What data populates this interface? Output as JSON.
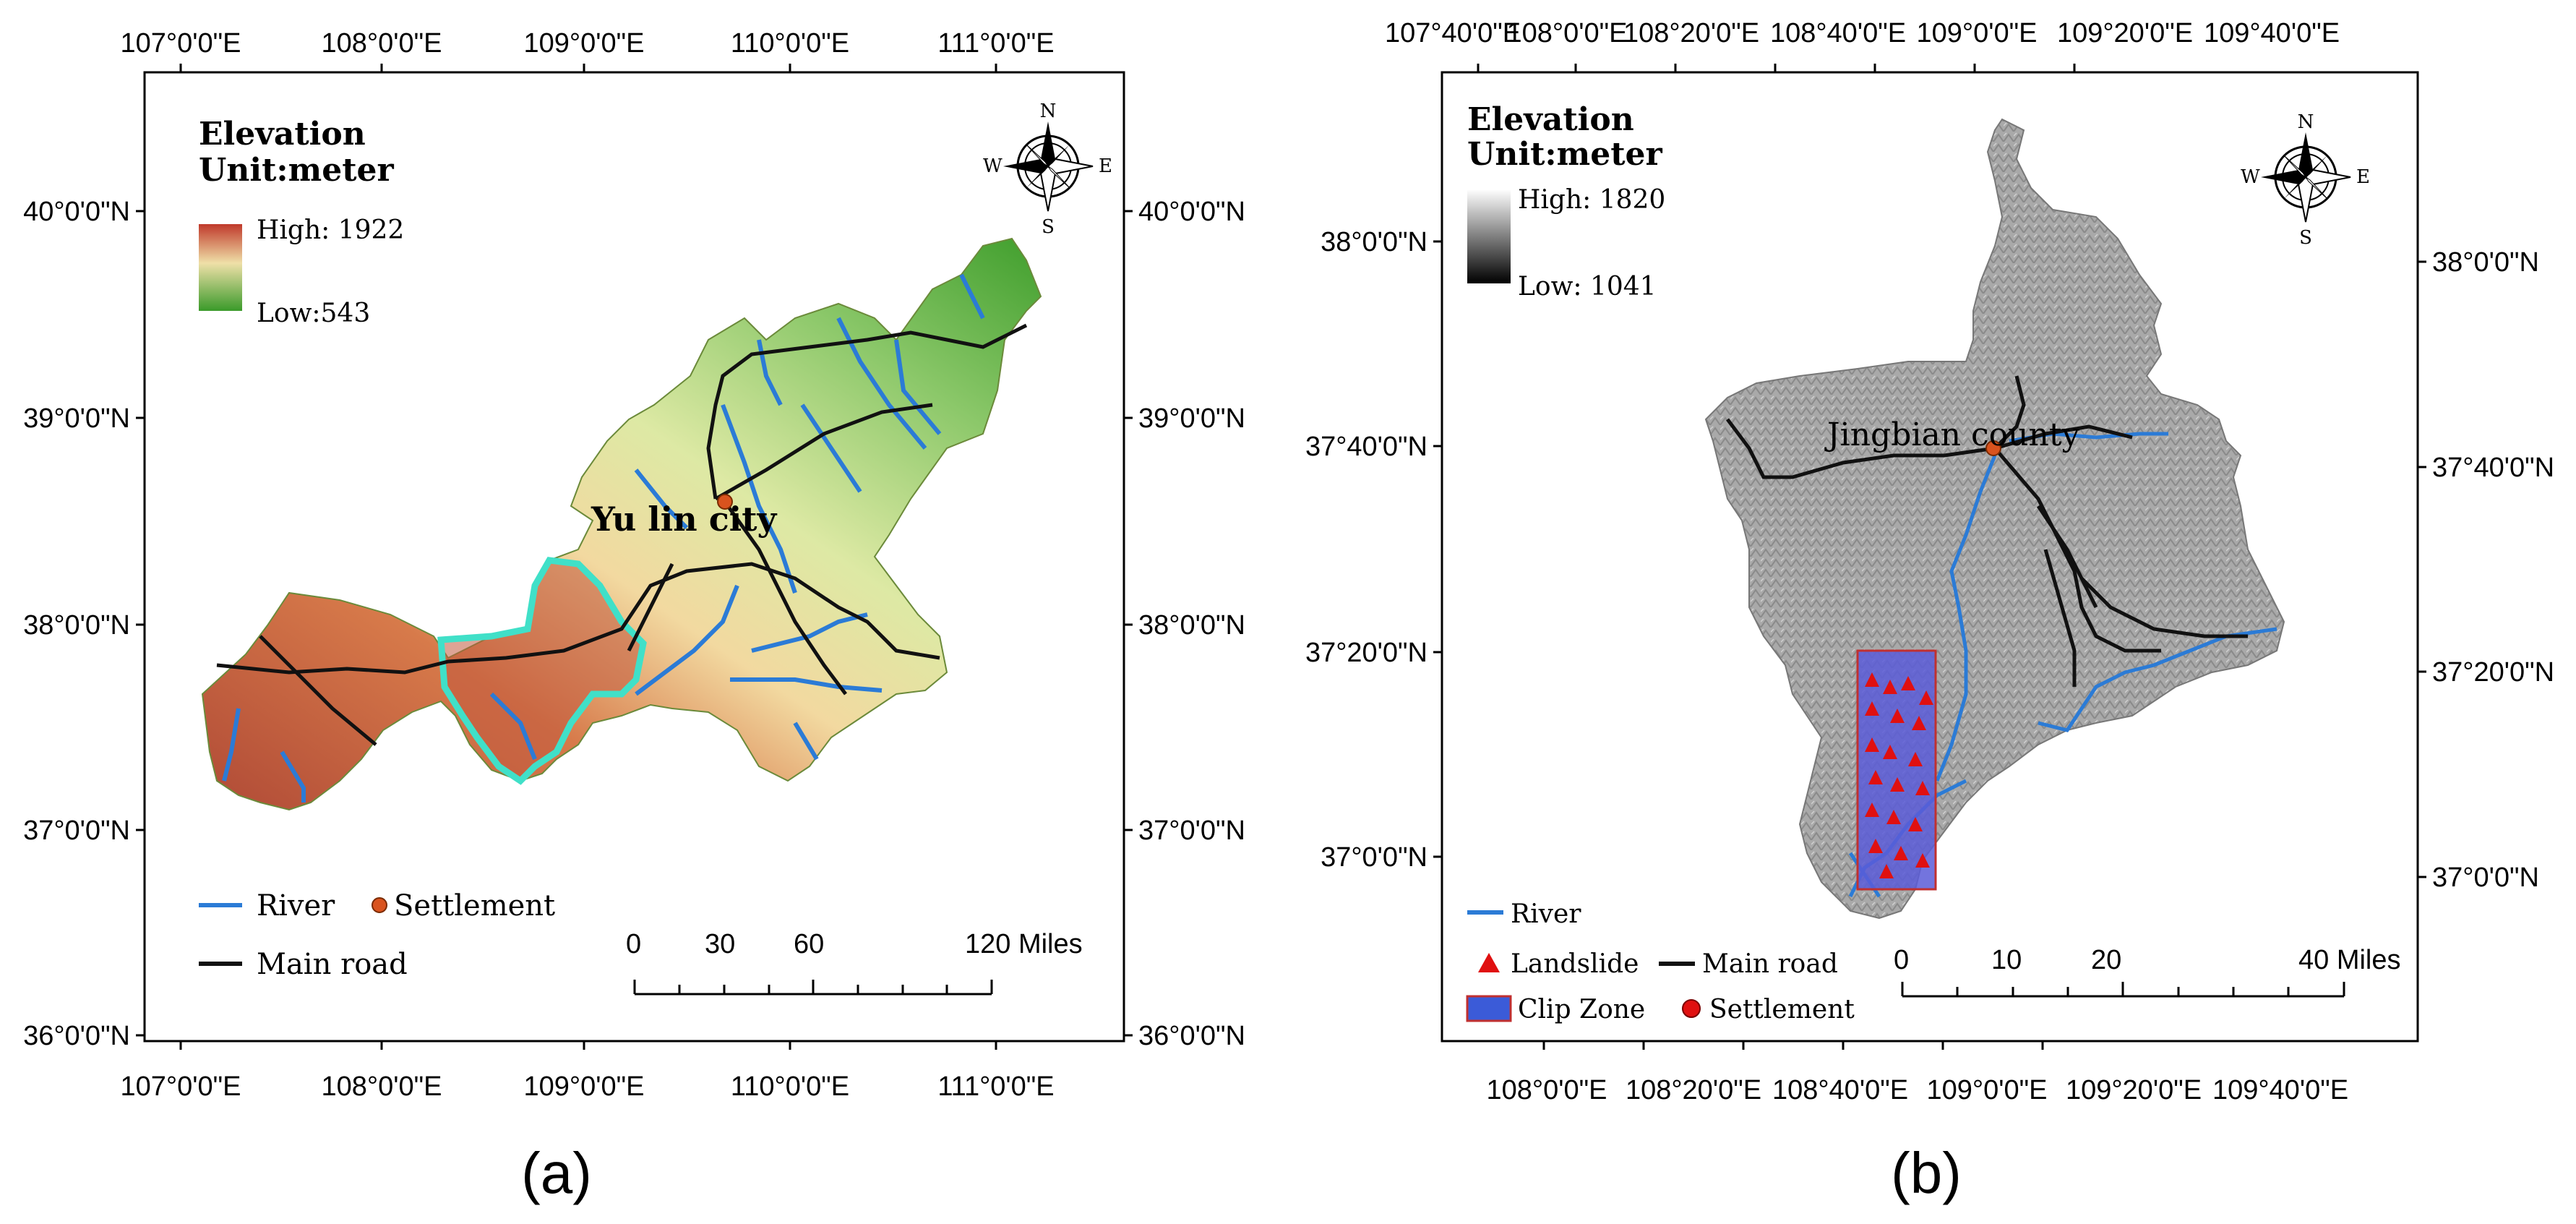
{
  "panels": [
    {
      "caption": "(a)",
      "top_ticks": [
        "107°0'0\"E",
        "108°0'0\"E",
        "109°0'0\"E",
        "110°0'0\"E",
        "111°0'0\"E"
      ],
      "bottom_ticks": [
        "107°0'0\"E",
        "108°0'0\"E",
        "109°0'0\"E",
        "110°0'0\"E",
        "111°0'0\"E"
      ],
      "left_ticks": [
        "40°0'0\"N",
        "39°0'0\"N",
        "38°0'0\"N",
        "37°0'0\"N",
        "36°0'0\"N"
      ],
      "right_ticks": [
        "40°0'0\"N",
        "39°0'0\"N",
        "38°0'0\"N",
        "37°0'0\"N",
        "36°0'0\"N"
      ],
      "legend": {
        "title1": "Elevation",
        "title2": "Unit:meter",
        "high": "High: 1922",
        "low": "Low:543",
        "high_color": "#c0392b",
        "low_color": "#3a9a2a"
      },
      "place_label": "Yu lin city",
      "bottom_legend": {
        "river": "River",
        "settlement": "Settlement",
        "road": "Main road"
      },
      "scale": {
        "ticks": [
          "0",
          "30",
          "60",
          "120 Miles"
        ]
      },
      "north": {
        "n": "N",
        "s": "S",
        "e": "E",
        "w": "W"
      }
    },
    {
      "caption": "(b)",
      "top_ticks": [
        "107°40'0\"E",
        "108°0'0\"E",
        "108°20'0\"E",
        "108°40'0\"E",
        "109°0'0\"E",
        "109°20'0\"E",
        "109°40'0\"E"
      ],
      "bottom_ticks": [
        "108°0'0\"E",
        "108°20'0\"E",
        "108°40'0\"E",
        "109°0'0\"E",
        "109°20'0\"E",
        "109°40'0\"E"
      ],
      "left_ticks": [
        "38°0'0\"N",
        "37°40'0\"N",
        "37°20'0\"N",
        "37°0'0\"N"
      ],
      "right_ticks": [
        "38°0'0\"N",
        "37°40'0\"N",
        "37°20'0\"N",
        "37°0'0\"N"
      ],
      "legend": {
        "title1": "Elevation",
        "title2": "Unit:meter",
        "high": "High: 1820",
        "low": "Low: 1041"
      },
      "place_label": "Jingbian county",
      "bottom_legend": {
        "river": "River",
        "landslide": "Landslide",
        "road": "Main road",
        "clip": "Clip Zone",
        "settlement": "Settlement"
      },
      "scale": {
        "ticks": [
          "0",
          "10",
          "20",
          "40 Miles"
        ]
      },
      "north": {
        "n": "N",
        "s": "S",
        "e": "E",
        "w": "W"
      }
    }
  ],
  "colors": {
    "river": "#2b7bd6",
    "road": "#111111",
    "settlement": "#d9531e",
    "boundary_highlight": "#40e0c8",
    "clip_fill": "#5a5cd8",
    "landslide": "#e01010"
  }
}
